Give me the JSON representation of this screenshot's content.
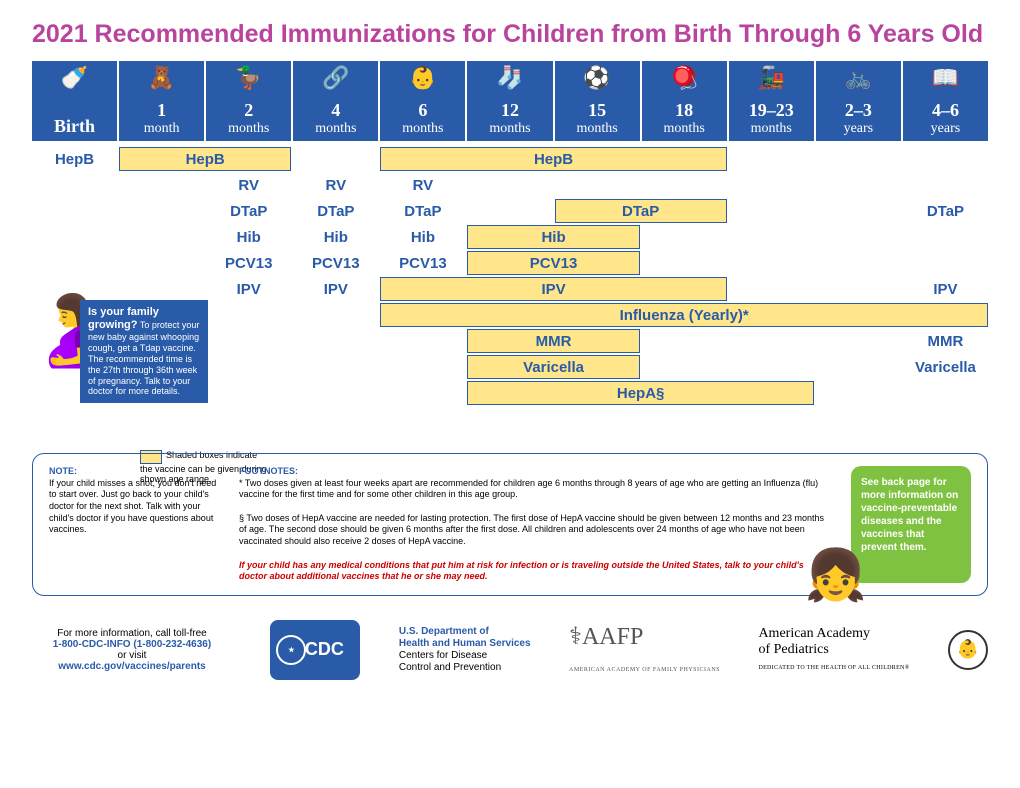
{
  "title": "2021 Recommended Immunizations for Children from Birth Through 6 Years Old",
  "ages": [
    {
      "num": "",
      "unit": "Birth",
      "icon": "🍼"
    },
    {
      "num": "1",
      "unit": "month",
      "icon": "🧸"
    },
    {
      "num": "2",
      "unit": "months",
      "icon": "🦆"
    },
    {
      "num": "4",
      "unit": "months",
      "icon": "🔗"
    },
    {
      "num": "6",
      "unit": "months",
      "icon": "👶"
    },
    {
      "num": "12",
      "unit": "months",
      "icon": "🧦"
    },
    {
      "num": "15",
      "unit": "months",
      "icon": "⚽"
    },
    {
      "num": "18",
      "unit": "months",
      "icon": "🪀"
    },
    {
      "num": "19–23",
      "unit": "months",
      "icon": "🚂"
    },
    {
      "num": "2–3",
      "unit": "years",
      "icon": "🚲"
    },
    {
      "num": "4–6",
      "unit": "years",
      "icon": "📖"
    }
  ],
  "vaccines": {
    "hepb": "HepB",
    "rv": "RV",
    "dtap": "DTaP",
    "hib": "Hib",
    "pcv13": "PCV13",
    "ipv": "IPV",
    "flu": "Influenza (Yearly)*",
    "mmr": "MMR",
    "varicella": "Varicella",
    "hepa": "HepA§"
  },
  "pregnant": {
    "title": "Is your family growing?",
    "body": " To protect your new baby against whooping cough, get a Tdap vaccine. The recommended time is the 27th through 36th week of pregnancy. Talk to your doctor for more details."
  },
  "legend": "Shaded boxes indicate the vaccine can be given during shown age range.",
  "notes": {
    "note_title": "NOTE:",
    "note_body": "If your child misses a shot, you don't need to start over. Just go back to your child's doctor for the next shot. Talk with your child's doctor if you have questions about vaccines.",
    "footnotes_title": "FOOTNOTES:",
    "fn1": "Two doses given at least four weeks apart are recommended for children age 6 months through 8 years of age who are getting an Influenza (flu) vaccine for the first time and for some other children in this age group.",
    "fn2": "Two doses of HepA vaccine are needed for lasting protection. The first dose of HepA vaccine should be given between 12 months and 23 months of age. The second dose should be given 6 months after the first dose. All children and adolescents over 24 months of age who have not been vaccinated should also receive 2 doses of HepA vaccine.",
    "fn_red": "If your child has any medical conditions that put him at risk for infection or is traveling outside the United States, talk to your child's doctor about additional vaccines that he or she may need."
  },
  "green": "See back page for more information on vaccine-preventable diseases and the vaccines that prevent them.",
  "footer": {
    "info1": "For more information, call toll-free",
    "phone": "1-800-CDC-INFO (1-800-232-4636)",
    "or": "or visit",
    "url": "www.cdc.gov/vaccines/parents",
    "cdc": "CDC",
    "dept1": "U.S. Department of",
    "dept2": "Health and Human Services",
    "dept3": "Centers for Disease",
    "dept4": "Control and Prevention",
    "aafp": "AAFP",
    "aafp_sub": "AMERICAN ACADEMY OF FAMILY PHYSICIANS",
    "aap1": "American Academy",
    "aap2": "of Pediatrics",
    "aap_sub": "DEDICATED TO THE HEALTH OF ALL CHILDREN®"
  },
  "colors": {
    "header_blue": "#2a5ba8",
    "box_yellow": "#ffe68a",
    "title_magenta": "#b8449e",
    "green": "#7fc241"
  }
}
